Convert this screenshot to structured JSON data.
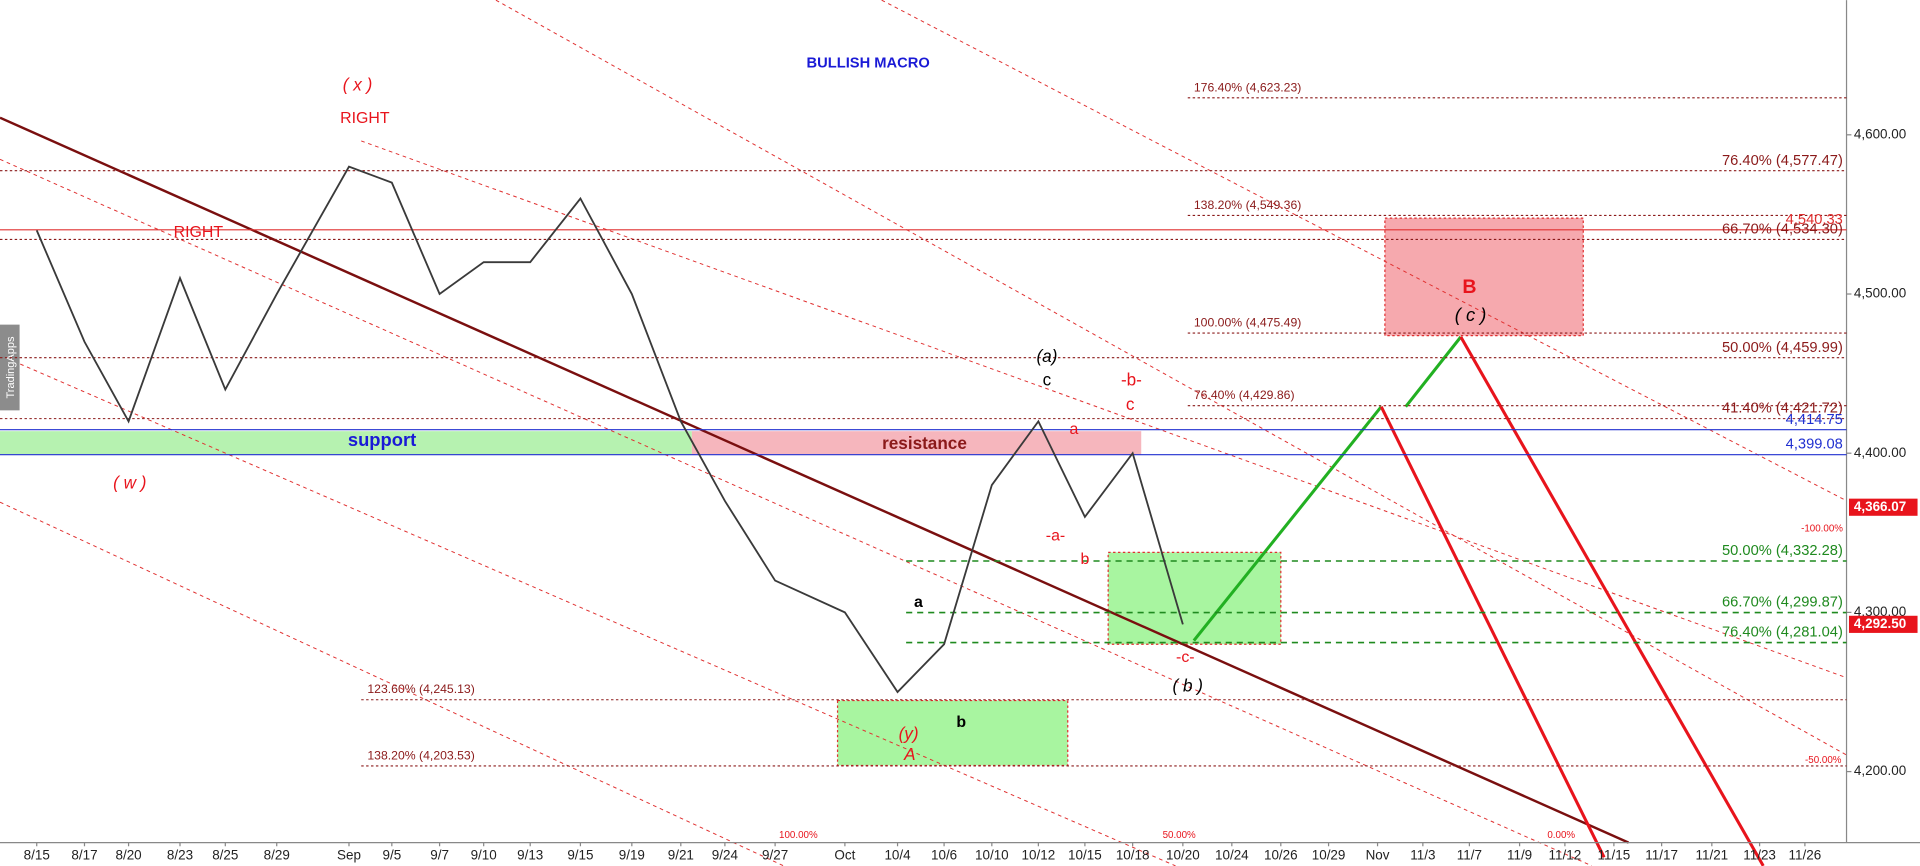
{
  "chart_data": {
    "type": "line",
    "title": "BULLISH MACRO",
    "watermark": "TradingApps",
    "categories": [
      "8/15",
      "8/17",
      "8/20",
      "8/23",
      "8/25",
      "8/29",
      "Sep",
      "9/5",
      "9/7",
      "9/10",
      "9/13",
      "9/15",
      "9/19",
      "9/21",
      "9/24",
      "9/27",
      "Oct",
      "10/4",
      "10/6",
      "10/10",
      "10/12",
      "10/15",
      "10/18",
      "10/20",
      "10/24",
      "10/26",
      "10/29",
      "Nov",
      "11/3",
      "11/7",
      "11/9",
      "11/12",
      "11/15",
      "11/17",
      "11/21",
      "11/23",
      "11/26"
    ],
    "series": [
      {
        "name": "Price",
        "color": "#3a3a3a",
        "values": [
          4540,
          4470,
          4420,
          4510,
          4440,
          4500,
          4580,
          4570,
          4500,
          4520,
          4520,
          4560,
          4500,
          4420,
          4370,
          4320,
          4300,
          4250,
          4280,
          4380,
          4420,
          4360,
          4400,
          4292.5,
          null,
          null,
          null,
          null,
          null,
          null,
          null,
          null,
          null,
          null,
          null,
          null,
          null
        ]
      }
    ],
    "ylim": [
      4155.4,
      4684.6
    ],
    "yticks": [
      {
        "value": 4200,
        "label": "4,200.00"
      },
      {
        "value": 4300,
        "label": "4,300.00"
      },
      {
        "value": 4400,
        "label": "4,400.00"
      },
      {
        "value": 4500,
        "label": "4,500.00"
      },
      {
        "value": 4600,
        "label": "4,600.00"
      }
    ],
    "price_tags": [
      {
        "value": 4366.07,
        "label": "4,366.07"
      },
      {
        "value": 4292.5,
        "label": "4,292.50"
      }
    ],
    "levels": [
      {
        "value": 4623.23,
        "label": "176.40% (4,623.23)",
        "color": "#8b1a1a"
      },
      {
        "value": 4577.47,
        "label": "76.40% (4,577.47)",
        "color": "#8b1a1a"
      },
      {
        "value": 4549.36,
        "label": "138.20% (4,549.36)",
        "color": "#8b1a1a"
      },
      {
        "value": 4540.33,
        "label": "4,540.33",
        "color": "#e03030"
      },
      {
        "value": 4534.3,
        "label": "66.70% (4,534.30)",
        "color": "#8b1a1a"
      },
      {
        "value": 4475.49,
        "label": "100.00% (4,475.49)",
        "color": "#8b1a1a"
      },
      {
        "value": 4459.99,
        "label": "50.00% (4,459.99)",
        "color": "#8b1a1a"
      },
      {
        "value": 4429.86,
        "label": "76.40% (4,429.86)",
        "color": "#8b1a1a"
      },
      {
        "value": 4421.72,
        "label": "41.40% (4,421.72)",
        "color": "#8b1a1a"
      },
      {
        "value": 4414.75,
        "label": "4,414.75",
        "color": "#2030d0"
      },
      {
        "value": 4399.08,
        "label": "4,399.08",
        "color": "#2030d0"
      },
      {
        "value": 4332.28,
        "label": "50.00% (4,332.28)",
        "color": "#1f8a1f"
      },
      {
        "value": 4299.87,
        "label": "66.70% (4,299.87)",
        "color": "#1f8a1f"
      },
      {
        "value": 4281.04,
        "label": "76.40% (4,281.04)",
        "color": "#1f8a1f"
      },
      {
        "value": 4245.13,
        "label": "123.60% (4,245.13)",
        "color": "#8b1a1a"
      },
      {
        "value": 4203.53,
        "label": "138.20% (4,203.53)",
        "color": "#8b1a1a"
      }
    ],
    "annotations": [
      "( x )",
      "RIGHT",
      "RIGHT",
      "( w )",
      "support",
      "resistance",
      "(a)",
      "c",
      "-b-",
      "c",
      "a",
      "-a-",
      "b",
      "a",
      "b",
      "(y)",
      "A",
      "-c-",
      "( b )",
      "B",
      "( c )",
      "100.00%",
      "50.00%",
      "0.00%",
      "-100.00%",
      "-50.00%"
    ]
  }
}
